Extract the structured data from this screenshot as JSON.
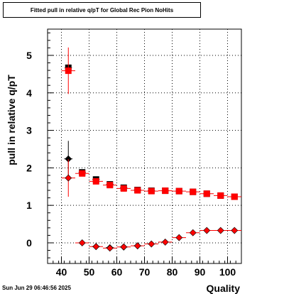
{
  "chart_data": {
    "type": "scatter",
    "title": "Fitted pull in relative q/pT for Global Rec Pion NoHits",
    "xlabel": "Quality",
    "ylabel": "pull in relative q/pT",
    "xlim": [
      35,
      105
    ],
    "ylim": [
      -0.55,
      5.7
    ],
    "x_ticks": [
      "40",
      "50",
      "60",
      "70",
      "80",
      "90",
      "100"
    ],
    "y_ticks": [
      "0",
      "1",
      "2",
      "3",
      "4",
      "5"
    ],
    "grid": true,
    "legend": "none",
    "series": [
      {
        "marker": "square",
        "color": "#000000",
        "points": [
          {
            "x": 42.5,
            "y": 4.67,
            "xerr": 1.3,
            "yerr": 0.0
          },
          {
            "x": 47.5,
            "y": 1.88,
            "xerr": 1.3,
            "yerr": 0.03
          },
          {
            "x": 52.5,
            "y": 1.69,
            "xerr": 1.3,
            "yerr": 0.02
          },
          {
            "x": 57.5,
            "y": 1.56,
            "xerr": 1.3,
            "yerr": 0.02
          },
          {
            "x": 62.5,
            "y": 1.47,
            "xerr": 1.3,
            "yerr": 0.02
          },
          {
            "x": 67.5,
            "y": 1.41,
            "xerr": 1.3,
            "yerr": 0.02
          },
          {
            "x": 72.5,
            "y": 1.39,
            "xerr": 1.3,
            "yerr": 0.02
          },
          {
            "x": 77.5,
            "y": 1.39,
            "xerr": 1.3,
            "yerr": 0.02
          },
          {
            "x": 82.5,
            "y": 1.38,
            "xerr": 1.3,
            "yerr": 0.02
          },
          {
            "x": 87.5,
            "y": 1.36,
            "xerr": 1.3,
            "yerr": 0.02
          },
          {
            "x": 92.5,
            "y": 1.31,
            "xerr": 1.3,
            "yerr": 0.02
          },
          {
            "x": 97.5,
            "y": 1.26,
            "xerr": 1.3,
            "yerr": 0.02
          },
          {
            "x": 102.5,
            "y": 1.23,
            "xerr": 1.3,
            "yerr": 0.02
          }
        ]
      },
      {
        "marker": "square",
        "color": "#ff0000",
        "points": [
          {
            "x": 42.5,
            "y": 4.59,
            "xerr": 2.5,
            "yerr": 0.62
          },
          {
            "x": 47.5,
            "y": 1.85,
            "xerr": 2.5,
            "yerr": 0.03
          },
          {
            "x": 52.5,
            "y": 1.64,
            "xerr": 2.5,
            "yerr": 0.02
          },
          {
            "x": 57.5,
            "y": 1.54,
            "xerr": 2.5,
            "yerr": 0.02
          },
          {
            "x": 62.5,
            "y": 1.45,
            "xerr": 2.5,
            "yerr": 0.02
          },
          {
            "x": 67.5,
            "y": 1.4,
            "xerr": 2.5,
            "yerr": 0.02
          },
          {
            "x": 72.5,
            "y": 1.38,
            "xerr": 2.5,
            "yerr": 0.02
          },
          {
            "x": 77.5,
            "y": 1.39,
            "xerr": 2.5,
            "yerr": 0.02
          },
          {
            "x": 82.5,
            "y": 1.38,
            "xerr": 2.5,
            "yerr": 0.02
          },
          {
            "x": 87.5,
            "y": 1.36,
            "xerr": 2.5,
            "yerr": 0.02
          },
          {
            "x": 92.5,
            "y": 1.31,
            "xerr": 2.5,
            "yerr": 0.02
          },
          {
            "x": 97.5,
            "y": 1.26,
            "xerr": 2.5,
            "yerr": 0.02
          },
          {
            "x": 102.5,
            "y": 1.23,
            "xerr": 2.5,
            "yerr": 0.02
          }
        ]
      },
      {
        "marker": "diamond",
        "color": "#000000",
        "points": [
          {
            "x": 42.5,
            "y": 2.24,
            "xerr": 1.5,
            "yerr": 0.48
          },
          {
            "x": 52.5,
            "y": -0.1,
            "xerr": 1.5,
            "yerr": 0.02
          },
          {
            "x": 57.5,
            "y": -0.13,
            "xerr": 1.5,
            "yerr": 0.02
          },
          {
            "x": 62.5,
            "y": -0.11,
            "xerr": 1.5,
            "yerr": 0.02
          },
          {
            "x": 67.5,
            "y": -0.08,
            "xerr": 1.5,
            "yerr": 0.02
          }
        ]
      },
      {
        "marker": "diamond",
        "color": "#ff0000",
        "points": [
          {
            "x": 42.5,
            "y": 1.73,
            "xerr": 2.5,
            "yerr": 0.5
          },
          {
            "x": 47.5,
            "y": 0.0,
            "xerr": 2.5,
            "yerr": 0.03
          },
          {
            "x": 52.5,
            "y": -0.1,
            "xerr": 2.5,
            "yerr": 0.02
          },
          {
            "x": 57.5,
            "y": -0.14,
            "xerr": 2.5,
            "yerr": 0.02
          },
          {
            "x": 62.5,
            "y": -0.11,
            "xerr": 2.5,
            "yerr": 0.02
          },
          {
            "x": 67.5,
            "y": -0.08,
            "xerr": 2.5,
            "yerr": 0.02
          },
          {
            "x": 72.5,
            "y": -0.03,
            "xerr": 2.5,
            "yerr": 0.02
          },
          {
            "x": 77.5,
            "y": 0.02,
            "xerr": 2.5,
            "yerr": 0.02
          },
          {
            "x": 82.5,
            "y": 0.14,
            "xerr": 2.5,
            "yerr": 0.02
          },
          {
            "x": 87.5,
            "y": 0.27,
            "xerr": 2.5,
            "yerr": 0.02
          },
          {
            "x": 92.5,
            "y": 0.33,
            "xerr": 2.5,
            "yerr": 0.02
          },
          {
            "x": 97.5,
            "y": 0.33,
            "xerr": 2.5,
            "yerr": 0.02
          },
          {
            "x": 102.5,
            "y": 0.33,
            "xerr": 2.5,
            "yerr": 0.02
          }
        ]
      }
    ]
  },
  "footer": {
    "datestamp": "Sun Jun 29 06:46:56 2025"
  }
}
